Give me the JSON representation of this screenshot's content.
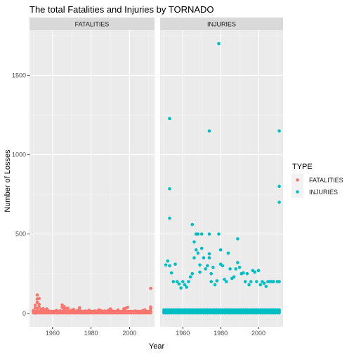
{
  "chart_data": {
    "type": "scatter",
    "title": "The total Fatalities and Injuries by TORNADO",
    "xlabel": "Year",
    "ylabel": "Number of Losses",
    "x_ticks": [
      1960,
      1980,
      2000
    ],
    "y_ticks": [
      0,
      500,
      1000,
      1500
    ],
    "xlim": [
      1948,
      2013
    ],
    "ylim": [
      -85,
      1785
    ],
    "grid": true,
    "facets": [
      "FATALITIES",
      "INJURIES"
    ],
    "legend": {
      "title": "TYPE",
      "placement": "right",
      "entries": [
        {
          "label": "FATALITIES",
          "color": "#F8766D"
        },
        {
          "label": "INJURIES",
          "color": "#00BFC4"
        }
      ]
    },
    "series": [
      {
        "facet": "FATALITIES",
        "color": "#F8766D",
        "points": [
          [
            1950,
            5
          ],
          [
            1950,
            18
          ],
          [
            1951,
            2
          ],
          [
            1951,
            34
          ],
          [
            1951,
            52
          ],
          [
            1952,
            70
          ],
          [
            1952,
            116
          ],
          [
            1952,
            90
          ],
          [
            1952,
            30
          ],
          [
            1953,
            94
          ],
          [
            1953,
            57
          ],
          [
            1953,
            40
          ],
          [
            1954,
            25
          ],
          [
            1954,
            12
          ],
          [
            1955,
            30
          ],
          [
            1955,
            8
          ],
          [
            1956,
            20
          ],
          [
            1957,
            28
          ],
          [
            1957,
            10
          ],
          [
            1958,
            15
          ],
          [
            1959,
            10
          ],
          [
            1960,
            12
          ],
          [
            1961,
            8
          ],
          [
            1962,
            18
          ],
          [
            1963,
            12
          ],
          [
            1964,
            16
          ],
          [
            1965,
            38
          ],
          [
            1965,
            53
          ],
          [
            1966,
            42
          ],
          [
            1966,
            25
          ],
          [
            1967,
            30
          ],
          [
            1967,
            10
          ],
          [
            1968,
            32
          ],
          [
            1969,
            15
          ],
          [
            1970,
            20
          ],
          [
            1971,
            24
          ],
          [
            1972,
            12
          ],
          [
            1973,
            18
          ],
          [
            1974,
            36
          ],
          [
            1974,
            28
          ],
          [
            1975,
            10
          ],
          [
            1976,
            8
          ],
          [
            1977,
            15
          ],
          [
            1978,
            12
          ],
          [
            1979,
            20
          ],
          [
            1980,
            10
          ],
          [
            1981,
            8
          ],
          [
            1982,
            15
          ],
          [
            1983,
            12
          ],
          [
            1984,
            22
          ],
          [
            1985,
            18
          ],
          [
            1986,
            8
          ],
          [
            1987,
            15
          ],
          [
            1988,
            10
          ],
          [
            1989,
            20
          ],
          [
            1990,
            28
          ],
          [
            1991,
            15
          ],
          [
            1992,
            12
          ],
          [
            1993,
            8
          ],
          [
            1994,
            22
          ],
          [
            1995,
            10
          ],
          [
            1996,
            8
          ],
          [
            1997,
            28
          ],
          [
            1998,
            32
          ],
          [
            1999,
            38
          ],
          [
            2000,
            12
          ],
          [
            2001,
            8
          ],
          [
            2002,
            10
          ],
          [
            2003,
            15
          ],
          [
            2004,
            5
          ],
          [
            2005,
            12
          ],
          [
            2006,
            10
          ],
          [
            2007,
            18
          ],
          [
            2008,
            22
          ],
          [
            2009,
            8
          ],
          [
            2010,
            12
          ],
          [
            2011,
            158
          ],
          [
            2011,
            30
          ],
          [
            2011,
            40
          ]
        ]
      },
      {
        "facet": "INJURIES",
        "color": "#00BFC4",
        "points": [
          [
            1953,
            1228
          ],
          [
            1953,
            785
          ],
          [
            1953,
            600
          ],
          [
            1952,
            330
          ],
          [
            1953,
            300
          ],
          [
            1951,
            305
          ],
          [
            1954,
            255
          ],
          [
            1955,
            200
          ],
          [
            1956,
            310
          ],
          [
            1957,
            200
          ],
          [
            1958,
            185
          ],
          [
            1959,
            160
          ],
          [
            1960,
            200
          ],
          [
            1961,
            180
          ],
          [
            1962,
            165
          ],
          [
            1963,
            200
          ],
          [
            1964,
            230
          ],
          [
            1965,
            560
          ],
          [
            1965,
            250
          ],
          [
            1966,
            450
          ],
          [
            1966,
            350
          ],
          [
            1967,
            400
          ],
          [
            1967,
            500
          ],
          [
            1968,
            500
          ],
          [
            1968,
            380
          ],
          [
            1969,
            305
          ],
          [
            1969,
            260
          ],
          [
            1970,
            500
          ],
          [
            1970,
            410
          ],
          [
            1971,
            350
          ],
          [
            1972,
            280
          ],
          [
            1973,
            300
          ],
          [
            1974,
            1150
          ],
          [
            1974,
            500
          ],
          [
            1974,
            375
          ],
          [
            1974,
            350
          ],
          [
            1975,
            200
          ],
          [
            1975,
            250
          ],
          [
            1976,
            290
          ],
          [
            1977,
            180
          ],
          [
            1978,
            205
          ],
          [
            1979,
            1700
          ],
          [
            1979,
            500
          ],
          [
            1980,
            400
          ],
          [
            1980,
            310
          ],
          [
            1981,
            300
          ],
          [
            1982,
            215
          ],
          [
            1983,
            200
          ],
          [
            1984,
            380
          ],
          [
            1985,
            280
          ],
          [
            1986,
            220
          ],
          [
            1987,
            230
          ],
          [
            1988,
            280
          ],
          [
            1989,
            470
          ],
          [
            1989,
            320
          ],
          [
            1990,
            290
          ],
          [
            1991,
            250
          ],
          [
            1992,
            255
          ],
          [
            1993,
            200
          ],
          [
            1994,
            250
          ],
          [
            1995,
            180
          ],
          [
            1996,
            200
          ],
          [
            1997,
            270
          ],
          [
            1998,
            260
          ],
          [
            1999,
            200
          ],
          [
            2000,
            270
          ],
          [
            2001,
            180
          ],
          [
            2002,
            200
          ],
          [
            2003,
            190
          ],
          [
            2004,
            170
          ],
          [
            2005,
            200
          ],
          [
            2006,
            200
          ],
          [
            2007,
            200
          ],
          [
            2008,
            200
          ],
          [
            2010,
            200
          ],
          [
            2011,
            1150
          ],
          [
            2011,
            800
          ],
          [
            2011,
            700
          ],
          [
            2011,
            200
          ]
        ]
      }
    ]
  }
}
